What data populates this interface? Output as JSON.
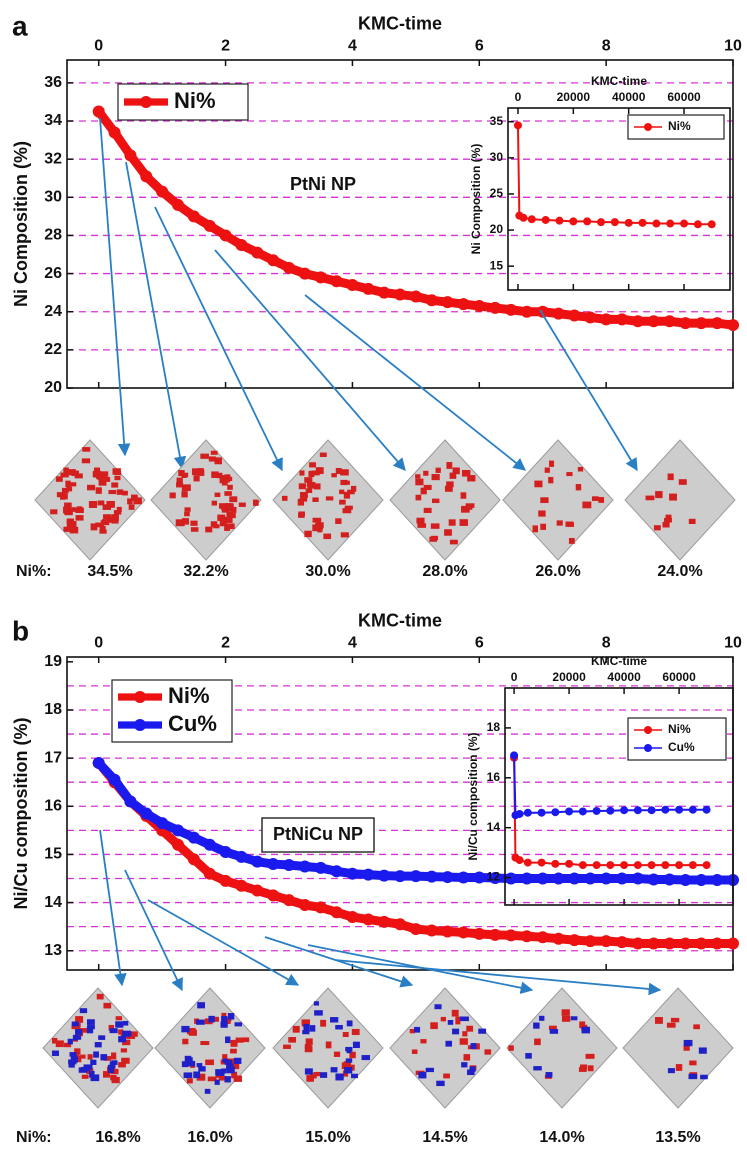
{
  "panels": [
    {
      "label": "a",
      "particle_caption": "Ni%:",
      "particle_values": [
        "34.5%",
        "32.2%",
        "30.0%",
        "28.0%",
        "26.0%",
        "24.0%"
      ]
    },
    {
      "label": "b",
      "particle_caption": "Ni%:",
      "particle_values": [
        "16.8%",
        "16.0%",
        "15.0%",
        "14.5%",
        "14.0%",
        "13.5%"
      ]
    }
  ],
  "chart_data": [
    {
      "type": "line",
      "xlabel": "KMC-time",
      "ylabel": "Ni Composition (%)",
      "annotation": "PtNi NP",
      "xlim": [
        -0.5,
        10
      ],
      "xticks": [
        0,
        2,
        4,
        6,
        8,
        10
      ],
      "ylim": [
        20,
        37.2
      ],
      "yticks": [
        20,
        22,
        24,
        26,
        28,
        30,
        32,
        34,
        36
      ],
      "grid_y": [
        22,
        24,
        26,
        28,
        30,
        32,
        34,
        36
      ],
      "grid_color": "#d633d6",
      "x": [
        0,
        0.25,
        0.5,
        0.75,
        1,
        1.25,
        1.5,
        1.75,
        2,
        2.25,
        2.5,
        2.75,
        3,
        3.25,
        3.5,
        3.75,
        4,
        4.25,
        4.5,
        4.75,
        5,
        5.25,
        5.5,
        5.75,
        6,
        6.25,
        6.5,
        6.75,
        7,
        7.25,
        7.5,
        7.75,
        8,
        8.25,
        8.5,
        8.75,
        9,
        9.25,
        9.5,
        9.75,
        10
      ],
      "series": [
        {
          "name": "Ni%",
          "color": "#ee1111",
          "values": [
            34.5,
            33.4,
            32.2,
            31.1,
            30.3,
            29.6,
            29.0,
            28.5,
            28.0,
            27.5,
            27.1,
            26.7,
            26.3,
            26.0,
            25.8,
            25.6,
            25.4,
            25.2,
            25.0,
            24.9,
            24.8,
            24.6,
            24.5,
            24.4,
            24.3,
            24.2,
            24.1,
            24.0,
            24.0,
            23.9,
            23.8,
            23.7,
            23.6,
            23.6,
            23.5,
            23.5,
            23.5,
            23.4,
            23.4,
            23.4,
            23.3
          ]
        }
      ]
    },
    {
      "type": "line",
      "xlabel": "KMC-time",
      "ylabel": "Ni Composition (%)",
      "xlim": [
        -3600,
        76600
      ],
      "xticks": [
        0,
        20000,
        40000,
        60000
      ],
      "ylim": [
        11.7,
        36.9
      ],
      "yticks": [
        15,
        20,
        25,
        30,
        35
      ],
      "x": [
        0,
        500,
        2000,
        5000,
        10000,
        15000,
        20000,
        25000,
        30000,
        35000,
        40000,
        45000,
        50000,
        55000,
        60000,
        65000,
        70000
      ],
      "series": [
        {
          "name": "Ni%",
          "color": "#ee1111",
          "values": [
            34.5,
            22.0,
            21.7,
            21.5,
            21.4,
            21.3,
            21.2,
            21.2,
            21.1,
            21.1,
            21.0,
            21.0,
            20.9,
            20.9,
            20.9,
            20.8,
            20.8
          ]
        }
      ]
    },
    {
      "type": "line",
      "xlabel": "KMC-time",
      "ylabel": "Ni/Cu composition (%)",
      "annotation": "PtNiCu NP",
      "xlim": [
        -0.5,
        10
      ],
      "xticks": [
        0,
        2,
        4,
        6,
        8,
        10
      ],
      "ylim": [
        12.6,
        19.1
      ],
      "yticks": [
        13,
        14,
        15,
        16,
        17,
        18,
        19
      ],
      "grid_y": [
        13,
        13.5,
        14,
        14.5,
        15,
        15.5,
        16,
        16.5,
        17,
        17.5,
        18,
        18.5
      ],
      "grid_color": "#d633d6",
      "x": [
        0,
        0.25,
        0.5,
        0.75,
        1,
        1.25,
        1.5,
        1.75,
        2,
        2.25,
        2.5,
        2.75,
        3,
        3.25,
        3.5,
        3.75,
        4,
        4.25,
        4.5,
        4.75,
        5,
        5.25,
        5.5,
        5.75,
        6,
        6.25,
        6.5,
        6.75,
        7,
        7.25,
        7.5,
        7.75,
        8,
        8.25,
        8.5,
        8.75,
        9,
        9.25,
        9.5,
        9.75,
        10
      ],
      "series": [
        {
          "name": "Ni%",
          "color": "#ee1111",
          "values": [
            16.9,
            16.5,
            16.1,
            15.8,
            15.5,
            15.2,
            14.9,
            14.6,
            14.45,
            14.35,
            14.25,
            14.15,
            14.05,
            13.95,
            13.9,
            13.8,
            13.7,
            13.65,
            13.6,
            13.55,
            13.45,
            13.42,
            13.4,
            13.38,
            13.35,
            13.33,
            13.32,
            13.3,
            13.28,
            13.25,
            13.22,
            13.2,
            13.2,
            13.18,
            13.15,
            13.15,
            13.15,
            13.15,
            13.15,
            13.15,
            13.15
          ]
        },
        {
          "name": "Cu%",
          "color": "#1a1aee",
          "values": [
            16.9,
            16.55,
            16.1,
            15.85,
            15.65,
            15.5,
            15.35,
            15.2,
            15.05,
            14.95,
            14.85,
            14.8,
            14.78,
            14.75,
            14.72,
            14.65,
            14.6,
            14.58,
            14.56,
            14.55,
            14.55,
            14.54,
            14.53,
            14.52,
            14.52,
            14.51,
            14.5,
            14.5,
            14.5,
            14.5,
            14.5,
            14.5,
            14.5,
            14.5,
            14.5,
            14.48,
            14.48,
            14.47,
            14.47,
            14.47,
            14.47
          ]
        }
      ]
    },
    {
      "type": "line",
      "xlabel": "KMC-time",
      "ylabel": "Ni/Cu composition (%)",
      "xlim": [
        -3300,
        79600
      ],
      "xticks": [
        0,
        20000,
        40000,
        60000
      ],
      "ylim": [
        10.9,
        19.6
      ],
      "yticks": [
        12,
        14,
        16,
        18
      ],
      "x": [
        0,
        500,
        2000,
        5000,
        10000,
        15000,
        20000,
        25000,
        30000,
        35000,
        40000,
        45000,
        50000,
        55000,
        60000,
        65000,
        70000
      ],
      "series": [
        {
          "name": "Ni%",
          "color": "#ee1111",
          "values": [
            16.8,
            12.8,
            12.7,
            12.6,
            12.6,
            12.55,
            12.55,
            12.5,
            12.5,
            12.5,
            12.5,
            12.5,
            12.5,
            12.5,
            12.5,
            12.5,
            12.5
          ]
        },
        {
          "name": "Cu%",
          "color": "#1a1aee",
          "values": [
            16.9,
            14.5,
            14.55,
            14.6,
            14.6,
            14.62,
            14.65,
            14.65,
            14.67,
            14.68,
            14.7,
            14.7,
            14.7,
            14.72,
            14.72,
            14.72,
            14.72
          ]
        }
      ]
    }
  ]
}
